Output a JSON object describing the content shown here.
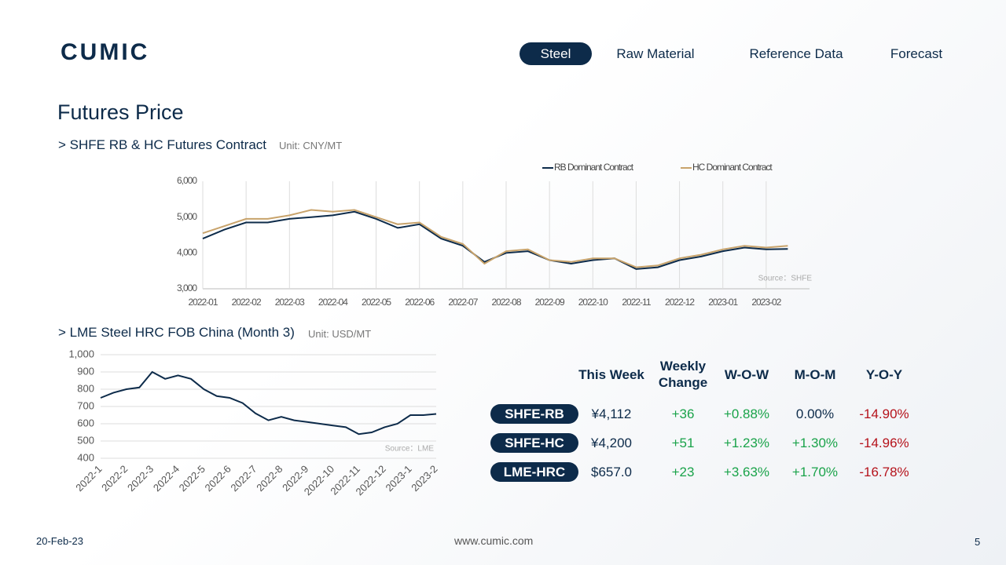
{
  "header": {
    "logo": "CUMIC",
    "nav": [
      "Steel",
      "Raw Material",
      "Reference Data",
      "Forecast"
    ],
    "active": 0
  },
  "title": "Futures Price",
  "chart_data": [
    {
      "type": "line",
      "title": "> SHFE RB & HC Futures Contract",
      "unit": "Unit: CNY/MT",
      "source": "Source：SHFE",
      "categories": [
        "2022-01",
        null,
        "2022-02",
        null,
        "2022-03",
        null,
        "2022-04",
        null,
        "2022-05",
        null,
        "2022-06",
        null,
        "2022-07",
        null,
        "2022-08",
        null,
        "2022-09",
        null,
        "2022-10",
        null,
        "2022-11",
        null,
        "2022-12",
        null,
        "2023-01",
        null,
        "2023-02",
        null
      ],
      "series": [
        {
          "name": "RB Dominant Contract",
          "color": "#0d2b4a",
          "values": [
            4400,
            4650,
            4850,
            4850,
            4950,
            5000,
            5050,
            5150,
            4950,
            4700,
            4800,
            4400,
            4200,
            3750,
            4000,
            4050,
            3800,
            3700,
            3800,
            3850,
            3550,
            3600,
            3800,
            3900,
            4050,
            4150,
            4100,
            4112
          ]
        },
        {
          "name": "HC Dominant Contract",
          "color": "#c8a36b",
          "values": [
            4550,
            4750,
            4950,
            4950,
            5050,
            5200,
            5150,
            5200,
            5000,
            4800,
            4850,
            4450,
            4250,
            3700,
            4050,
            4100,
            3800,
            3750,
            3850,
            3850,
            3600,
            3650,
            3850,
            3950,
            4100,
            4200,
            4150,
            4200
          ]
        }
      ],
      "ylim": [
        3000,
        6000
      ],
      "yticks": [
        {
          "value": 3000,
          "label": "3,000"
        },
        {
          "value": 4000,
          "label": "4,000"
        },
        {
          "value": 5000,
          "label": "5,000"
        },
        {
          "value": 6000,
          "label": "6,000"
        }
      ],
      "grid": "vertical",
      "legend": "top"
    },
    {
      "type": "line",
      "title": "> LME Steel HRC FOB China (Month 3)",
      "unit": "Unit: USD/MT",
      "source": "Source：LME",
      "categories": [
        "2022-1",
        null,
        "2022-2",
        null,
        "2022-3",
        null,
        "2022-4",
        null,
        "2022-5",
        null,
        "2022-6",
        null,
        "2022-7",
        null,
        "2022-8",
        null,
        "2022-9",
        null,
        "2022-10",
        null,
        "2022-11",
        null,
        "2022-12",
        null,
        "2023-1",
        null,
        "2023-2"
      ],
      "values": [
        750,
        780,
        800,
        810,
        900,
        860,
        880,
        860,
        800,
        760,
        750,
        720,
        660,
        620,
        640,
        620,
        610,
        600,
        590,
        580,
        540,
        550,
        580,
        600,
        650,
        650,
        657
      ],
      "color": "#0d2b4a",
      "ylim": [
        400,
        1000
      ],
      "yticks": [
        400,
        500,
        600,
        700,
        800,
        900,
        {
          "value": 1000,
          "label": "1,000"
        }
      ],
      "grid": "horizontal"
    }
  ],
  "table": {
    "columns": [
      "This Week",
      "Weekly Change",
      "W-O-W",
      "M-O-M",
      "Y-O-Y"
    ],
    "rows": [
      [
        "SHFE-RB",
        "¥4,112",
        "+36",
        "+0.88%",
        "0.00%",
        "-14.90%"
      ],
      [
        "SHFE-HC",
        "¥4,200",
        "+51",
        "+1.23%",
        "+1.30%",
        "-14.96%"
      ],
      [
        "LME-HRC",
        "$657.0",
        "+23",
        "+3.63%",
        "+1.70%",
        "-16.78%"
      ]
    ]
  },
  "footer": {
    "date": "20-Feb-23",
    "url": "www.cumic.com",
    "page": 5
  }
}
